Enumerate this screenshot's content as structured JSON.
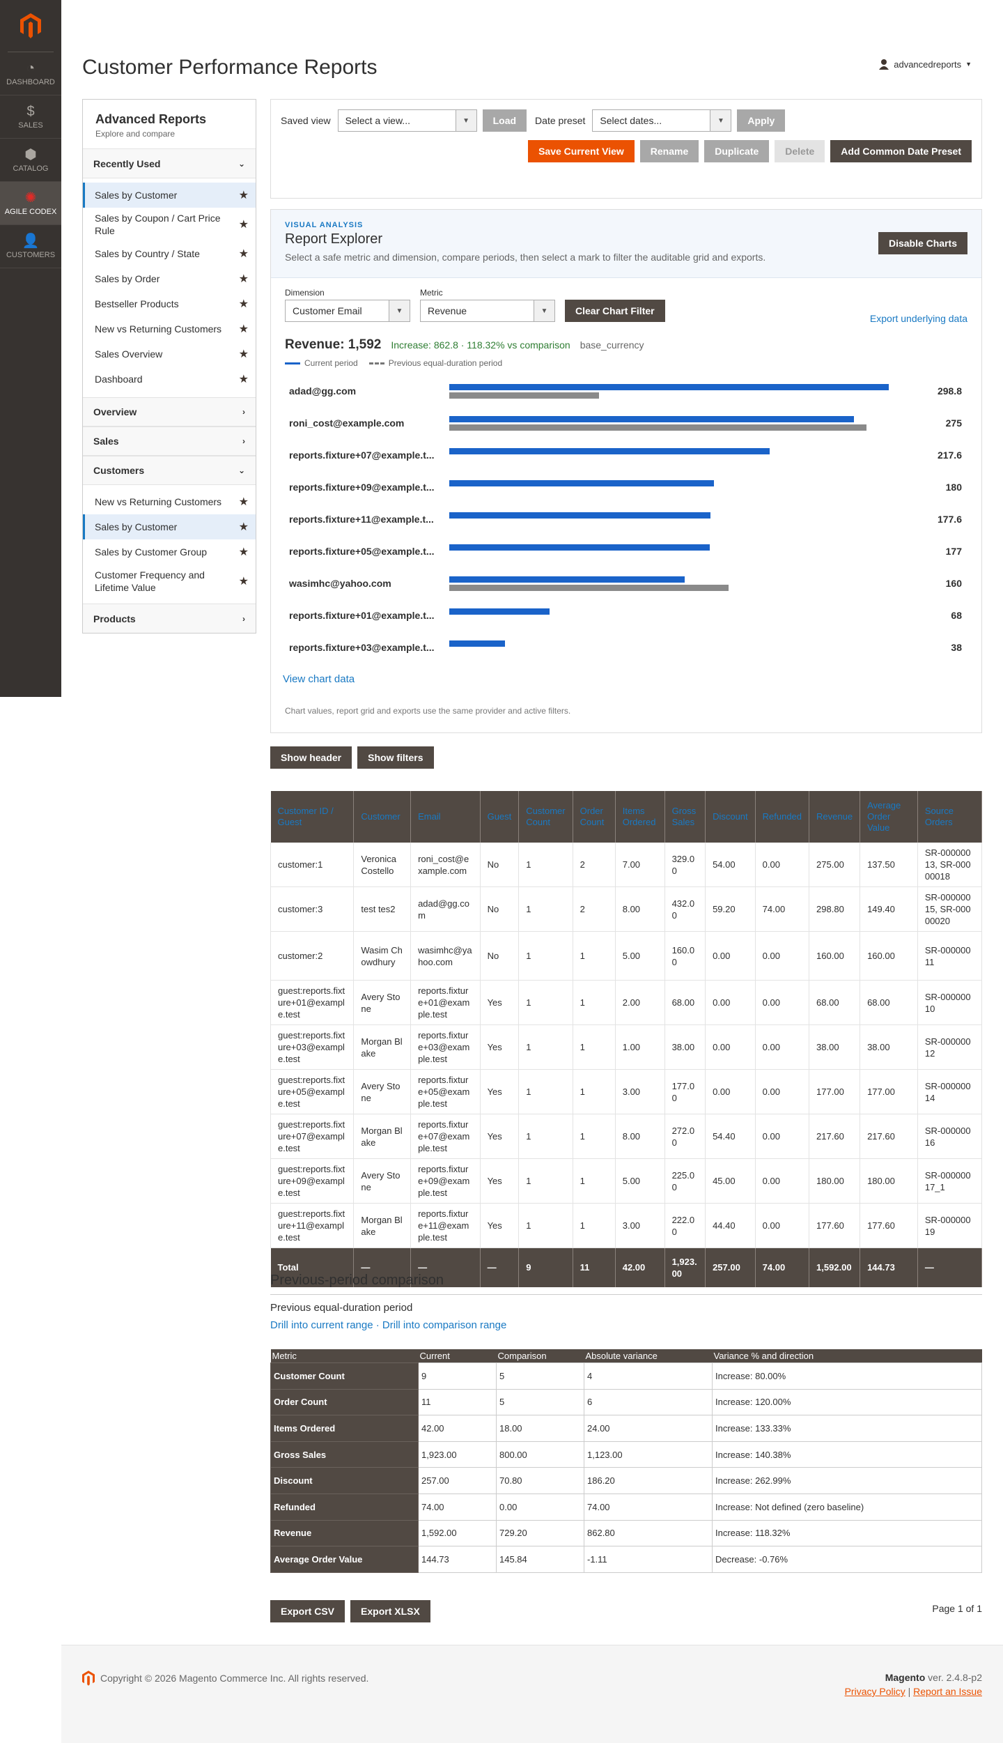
{
  "nav": {
    "items": [
      {
        "label": "DASHBOARD",
        "icon": "dashboard-icon",
        "glyph": "◔"
      },
      {
        "label": "SALES",
        "icon": "dollar-icon",
        "glyph": "$"
      },
      {
        "label": "CATALOG",
        "icon": "box-icon",
        "glyph": "⬢"
      },
      {
        "label": "AGILE CODEX",
        "icon": "agile-codex-icon",
        "glyph": "✺"
      },
      {
        "label": "CUSTOMERS",
        "icon": "person-icon",
        "glyph": "👤"
      }
    ]
  },
  "header": {
    "title": "Customer Performance Reports",
    "user": "advancedreports"
  },
  "sidebar": {
    "title": "Advanced Reports",
    "subtitle": "Explore and compare",
    "recently_used": {
      "label": "Recently Used",
      "items": [
        "Sales by Customer",
        "Sales by Coupon / Cart Price Rule",
        "Sales by Country / State",
        "Sales by Order",
        "Bestseller Products",
        "New vs Returning Customers",
        "Sales Overview",
        "Dashboard"
      ]
    },
    "overview": "Overview",
    "sales": "Sales",
    "customers": {
      "label": "Customers",
      "items": [
        "New vs Returning Customers",
        "Sales by Customer",
        "Sales by Customer Group",
        "Customer Frequency and Lifetime Value"
      ]
    },
    "products": "Products"
  },
  "views": {
    "saved_view_label": "Saved view",
    "saved_view_placeholder": "Select a view...",
    "load": "Load",
    "date_preset_label": "Date preset",
    "date_preset_placeholder": "Select dates...",
    "apply": "Apply",
    "save_current": "Save Current View",
    "rename": "Rename",
    "duplicate": "Duplicate",
    "delete": "Delete",
    "add_preset": "Add Common Date Preset"
  },
  "explorer": {
    "kicker": "VISUAL ANALYSIS",
    "title": "Report Explorer",
    "subtitle": "Select a safe metric and dimension, compare periods, then select a mark to filter the auditable grid and exports.",
    "disable": "Disable Charts",
    "dimension_label": "Dimension",
    "dimension": "Customer Email",
    "metric_label": "Metric",
    "metric": "Revenue",
    "clear": "Clear Chart Filter",
    "export": "Export underlying data",
    "revenue_total": "Revenue: 1,592",
    "increase": "Increase: 862.8 · 118.32% vs comparison",
    "currency": "base_currency",
    "legend_current": "Current period",
    "legend_previous": "Previous equal-duration period",
    "view_data": "View chart data",
    "note": "Chart values, report grid and exports use the same provider and active filters."
  },
  "chart_data": {
    "type": "bar",
    "categories": [
      "adad@gg.com",
      "roni_cost@example.com",
      "reports.fixture+07@example.test",
      "reports.fixture+09@example.test",
      "reports.fixture+11@example.test",
      "reports.fixture+05@example.test",
      "wasimhc@yahoo.com",
      "reports.fixture+01@example.test",
      "reports.fixture+03@example.test"
    ],
    "labels": [
      "adad@gg.com",
      "roni_cost@example.com",
      "reports.fixture+07@example.t...",
      "reports.fixture+09@example.t...",
      "reports.fixture+11@example.t...",
      "reports.fixture+05@example.t...",
      "wasimhc@yahoo.com",
      "reports.fixture+01@example.t...",
      "reports.fixture+03@example.t..."
    ],
    "series": [
      {
        "name": "Current period",
        "values": [
          298.8,
          275,
          217.6,
          180,
          177.6,
          177,
          160,
          68,
          38
        ]
      },
      {
        "name": "Previous equal-duration period",
        "values": [
          101.8,
          283.6,
          0,
          0,
          0,
          0,
          189.8,
          0,
          0
        ]
      }
    ],
    "value_labels": [
      "298.8",
      "275",
      "217.6",
      "180",
      "177.6",
      "177",
      "160",
      "68",
      "38"
    ],
    "xlim": [
      0,
      300
    ],
    "colors": {
      "current": "#1a63c9",
      "previous": "#8a8a8a"
    }
  },
  "toggles": {
    "show_header": "Show header",
    "show_filters": "Show filters"
  },
  "grid": {
    "columns": [
      "Customer ID / Guest",
      "Customer",
      "Email",
      "Guest",
      "Customer Count",
      "Order Count",
      "Items Ordered",
      "Gross Sales",
      "Discount",
      "Refunded",
      "Revenue",
      "Average Order Value",
      "Source Orders"
    ],
    "rows": [
      [
        "customer:1",
        "Veronica Costello",
        "roni_cost@example.com",
        "No",
        "1",
        "2",
        "7.00",
        "329.00",
        "54.00",
        "0.00",
        "275.00",
        "137.50",
        "SR-00000013, SR-00000018"
      ],
      [
        "customer:3",
        "test tes2",
        "adad@gg.com",
        "No",
        "1",
        "2",
        "8.00",
        "432.00",
        "59.20",
        "74.00",
        "298.80",
        "149.40",
        "SR-00000015, SR-00000020"
      ],
      [
        "customer:2",
        "Wasim Chowdhury",
        "wasimhc@yahoo.com",
        "No",
        "1",
        "1",
        "5.00",
        "160.00",
        "0.00",
        "0.00",
        "160.00",
        "160.00",
        "SR-00000011"
      ],
      [
        "guest:reports.fixture+01@example.test",
        "Avery Stone",
        "reports.fixture+01@example.test",
        "Yes",
        "1",
        "1",
        "2.00",
        "68.00",
        "0.00",
        "0.00",
        "68.00",
        "68.00",
        "SR-00000010"
      ],
      [
        "guest:reports.fixture+03@example.test",
        "Morgan Blake",
        "reports.fixture+03@example.test",
        "Yes",
        "1",
        "1",
        "1.00",
        "38.00",
        "0.00",
        "0.00",
        "38.00",
        "38.00",
        "SR-00000012"
      ],
      [
        "guest:reports.fixture+05@example.test",
        "Avery Stone",
        "reports.fixture+05@example.test",
        "Yes",
        "1",
        "1",
        "3.00",
        "177.00",
        "0.00",
        "0.00",
        "177.00",
        "177.00",
        "SR-00000014"
      ],
      [
        "guest:reports.fixture+07@example.test",
        "Morgan Blake",
        "reports.fixture+07@example.test",
        "Yes",
        "1",
        "1",
        "8.00",
        "272.00",
        "54.40",
        "0.00",
        "217.60",
        "217.60",
        "SR-00000016"
      ],
      [
        "guest:reports.fixture+09@example.test",
        "Avery Stone",
        "reports.fixture+09@example.test",
        "Yes",
        "1",
        "1",
        "5.00",
        "225.00",
        "45.00",
        "0.00",
        "180.00",
        "180.00",
        "SR-00000017_1"
      ],
      [
        "guest:reports.fixture+11@example.test",
        "Morgan Blake",
        "reports.fixture+11@example.test",
        "Yes",
        "1",
        "1",
        "3.00",
        "222.00",
        "44.40",
        "0.00",
        "177.60",
        "177.60",
        "SR-00000019"
      ]
    ],
    "total": [
      "Total",
      "—",
      "—",
      "—",
      "9",
      "11",
      "42.00",
      "1,923.00",
      "257.00",
      "74.00",
      "1,592.00",
      "144.73",
      "—"
    ]
  },
  "comparison": {
    "title": "Previous-period comparison",
    "subtitle": "Previous equal-duration period",
    "drill_current": "Drill into current range",
    "separator": " · ",
    "drill_comparison": "Drill into comparison range",
    "columns": [
      "Metric",
      "Current",
      "Comparison",
      "Absolute variance",
      "Variance % and direction"
    ],
    "rows": [
      [
        "Customer Count",
        "9",
        "5",
        "4",
        "Increase: 80.00%"
      ],
      [
        "Order Count",
        "11",
        "5",
        "6",
        "Increase: 120.00%"
      ],
      [
        "Items Ordered",
        "42.00",
        "18.00",
        "24.00",
        "Increase: 133.33%"
      ],
      [
        "Gross Sales",
        "1,923.00",
        "800.00",
        "1,123.00",
        "Increase: 140.38%"
      ],
      [
        "Discount",
        "257.00",
        "70.80",
        "186.20",
        "Increase: 262.99%"
      ],
      [
        "Refunded",
        "74.00",
        "0.00",
        "74.00",
        "Increase: Not defined (zero baseline)"
      ],
      [
        "Revenue",
        "1,592.00",
        "729.20",
        "862.80",
        "Increase: 118.32%"
      ],
      [
        "Average Order Value",
        "144.73",
        "145.84",
        "-1.11",
        "Decrease: -0.76%"
      ]
    ]
  },
  "exports": {
    "csv": "Export CSV",
    "xlsx": "Export XLSX",
    "pager": "Page 1 of 1"
  },
  "footer": {
    "copyright": "Copyright © 2026 Magento Commerce Inc. All rights reserved.",
    "brand": "Magento",
    "version": " ver. 2.4.8-p2",
    "privacy": "Privacy Policy",
    "sep": " | ",
    "report": "Report an Issue"
  }
}
